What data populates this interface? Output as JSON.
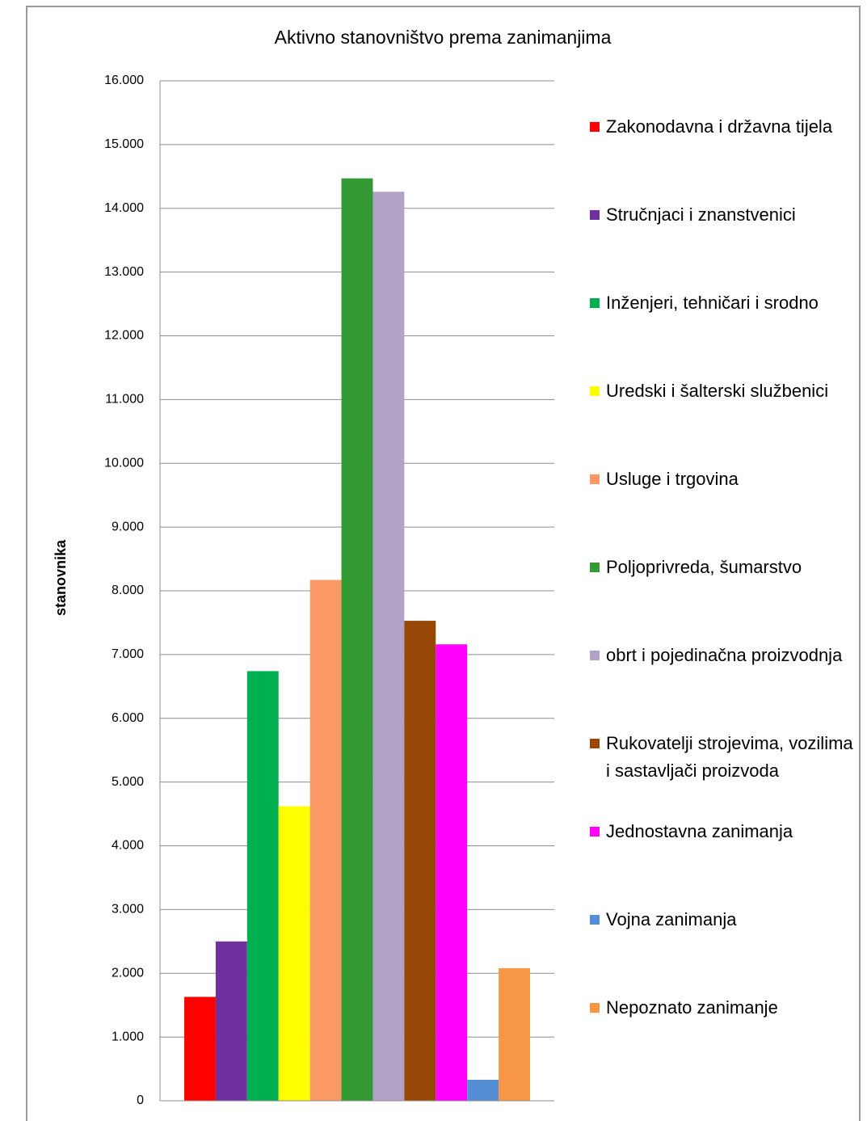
{
  "chart_data": {
    "type": "bar",
    "title": "Aktivno stanovništvo prema zanimanjima",
    "y_label": "stanovnika",
    "categories": [
      null
    ],
    "series": [
      {
        "name": "Zakonodavna i državna tijela",
        "color": "#ff0000",
        "values": [
          1630
        ]
      },
      {
        "name": "Stručnjaci i znanstvenici",
        "color": "#7030a0",
        "values": [
          2500
        ]
      },
      {
        "name": "Inženjeri, tehničari i srodno",
        "color": "#00b050",
        "values": [
          6740
        ]
      },
      {
        "name": "Uredski i šalterski službenici",
        "color": "#ffff00",
        "values": [
          4620
        ]
      },
      {
        "name": "Usluge i trgovina",
        "color": "#fa9966",
        "values": [
          8170
        ]
      },
      {
        "name": "Poljoprivreda, šumarstvo",
        "color": "#339933",
        "values": [
          14470
        ]
      },
      {
        "name": "obrt i pojedinačna proizvodnja",
        "color": "#b3a2c7",
        "values": [
          14260
        ]
      },
      {
        "name": "Rukovatelji strojevima, vozilima i sastavljači proizvoda",
        "color": "#974706",
        "values": [
          7530
        ]
      },
      {
        "name": "Jednostavna zanimanja",
        "color": "#ff00ff",
        "values": [
          7160
        ]
      },
      {
        "name": "Vojna zanimanja",
        "color": "#558ed5",
        "values": [
          330
        ]
      },
      {
        "name": "Nepoznato zanimanje",
        "color": "#f79646",
        "values": [
          2080
        ]
      }
    ],
    "ylim": [
      0,
      16000
    ],
    "yticks": [
      0,
      {
        "value": 1000,
        "label": "1.000"
      },
      {
        "value": 2000,
        "label": "2.000"
      },
      {
        "value": 3000,
        "label": "3.000"
      },
      {
        "value": 4000,
        "label": "4.000"
      },
      {
        "value": 5000,
        "label": "5.000"
      },
      {
        "value": 6000,
        "label": "6.000"
      },
      {
        "value": 7000,
        "label": "7.000"
      },
      {
        "value": 8000,
        "label": "8.000"
      },
      {
        "value": 9000,
        "label": "9.000"
      },
      {
        "value": 10000,
        "label": "10.000"
      },
      {
        "value": 11000,
        "label": "11.000"
      },
      {
        "value": 12000,
        "label": "12.000"
      },
      {
        "value": 13000,
        "label": "13.000"
      },
      {
        "value": 14000,
        "label": "14.000"
      },
      {
        "value": 15000,
        "label": "15.000"
      },
      {
        "value": 16000,
        "label": "16.000"
      }
    ],
    "grid": true,
    "legend": "right"
  }
}
